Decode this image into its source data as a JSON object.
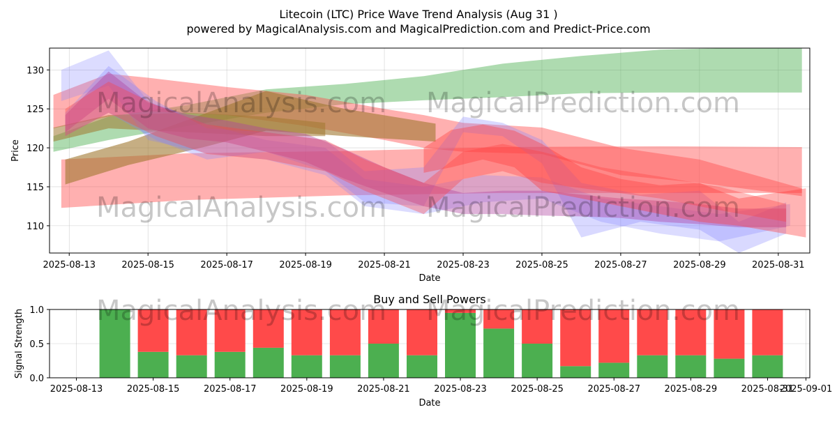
{
  "chart_data": [
    {
      "type": "area",
      "title": "Litecoin (LTC) Price Wave Trend Analysis (Aug 31 )",
      "subtitle": "powered by MagicalAnalysis.com and MagicalPrediction.com and Predict-Price.com",
      "xlabel": "Date",
      "ylabel": "Price",
      "xlim": [
        12.5,
        31.8
      ],
      "ylim": [
        106.5,
        132.8
      ],
      "grid": true,
      "x_ticks": [
        {
          "x": 13,
          "label": "2025-08-13"
        },
        {
          "x": 15,
          "label": "2025-08-15"
        },
        {
          "x": 17,
          "label": "2025-08-17"
        },
        {
          "x": 19,
          "label": "2025-08-19"
        },
        {
          "x": 21,
          "label": "2025-08-21"
        },
        {
          "x": 23,
          "label": "2025-08-23"
        },
        {
          "x": 25,
          "label": "2025-08-25"
        },
        {
          "x": 27,
          "label": "2025-08-27"
        },
        {
          "x": 29,
          "label": "2025-08-29"
        },
        {
          "x": 31,
          "label": "2025-08-31"
        }
      ],
      "y_ticks": [
        {
          "y": 110,
          "label": "110"
        },
        {
          "y": 115,
          "label": "115"
        },
        {
          "y": 120,
          "label": "120"
        },
        {
          "y": 125,
          "label": "125"
        },
        {
          "y": 130,
          "label": "130"
        }
      ],
      "watermarks": [
        "MagicalAnalysis.com",
        "MagicalPrediction.com",
        "MagicalAnalysis.com",
        "MagicalPrediction.com"
      ],
      "bands": [
        {
          "name": "green-uptrend",
          "color": "#4caf50",
          "opacity": 0.45,
          "x": [
            12.6,
            14,
            16,
            18,
            20,
            22,
            24,
            26,
            28,
            31.6
          ],
          "lower": [
            119.5,
            121,
            122.8,
            124.5,
            125.6,
            126.1,
            126.5,
            127,
            127.1,
            127.1
          ],
          "upper": [
            121.5,
            124,
            125.5,
            127.5,
            128.2,
            129.2,
            130.8,
            131.8,
            132.6,
            133
          ]
        },
        {
          "name": "red-flat-wide",
          "color": "#ff5050",
          "opacity": 0.45,
          "x": [
            12.8,
            16,
            20,
            24,
            28,
            31.6
          ],
          "lower": [
            112.3,
            113.3,
            113.9,
            114.2,
            114.2,
            114.2
          ],
          "upper": [
            118.5,
            119.3,
            119.6,
            120.1,
            120.2,
            120.1
          ]
        },
        {
          "name": "red-upper-decline",
          "color": "#ff5050",
          "opacity": 0.45,
          "x": [
            12.6,
            14,
            15,
            17,
            19,
            21,
            22,
            23,
            25,
            27,
            29,
            31.6
          ],
          "lower": [
            122.5,
            124,
            124.7,
            124.2,
            122.8,
            121,
            120,
            119.5,
            119.2,
            116.5,
            115.5,
            113.8
          ],
          "upper": [
            126.8,
            129.5,
            129,
            127.8,
            126.8,
            125,
            124.2,
            123.2,
            122.6,
            120,
            118.5,
            114.8
          ]
        },
        {
          "name": "olive-mixed",
          "color": "#a07830",
          "opacity": 0.6,
          "x": [
            12.9,
            14.5,
            16.5,
            18,
            20,
            22.3
          ],
          "lower": [
            115.3,
            117.8,
            120.2,
            122.2,
            121.5,
            120.8
          ],
          "upper": [
            118.5,
            120.8,
            124.5,
            127.3,
            125,
            123.1
          ]
        },
        {
          "name": "olive-upper",
          "color": "#a07830",
          "opacity": 0.55,
          "x": [
            12.6,
            14,
            16,
            18,
            19.5
          ],
          "lower": [
            120.8,
            122.5,
            122,
            121.5,
            121.5
          ],
          "upper": [
            122.6,
            124.2,
            124.5,
            124,
            123.2
          ]
        },
        {
          "name": "blue-fan-1",
          "color": "#8080ff",
          "opacity": 0.28,
          "x": [
            12.8,
            14,
            15,
            16.5,
            18,
            19.5,
            20.5,
            22,
            23.5,
            25,
            26.5,
            28,
            29.5,
            31.3
          ],
          "lower": [
            126,
            128,
            121,
            119.3,
            118.5,
            116.5,
            112.5,
            111.5,
            113,
            113.5,
            110.5,
            109,
            108,
            110
          ],
          "upper": [
            130,
            132.5,
            126,
            123,
            121,
            120,
            116,
            115,
            116.5,
            116.2,
            113.5,
            112.5,
            111.5,
            112.8
          ]
        },
        {
          "name": "blue-fan-2",
          "color": "#8080ff",
          "opacity": 0.3,
          "x": [
            12.9,
            14,
            15.2,
            16.5,
            18,
            19.5,
            20.5,
            22,
            23,
            24,
            25,
            26,
            27.5,
            29,
            30,
            31.2
          ],
          "lower": [
            121.5,
            124.5,
            121,
            118.5,
            119.5,
            117,
            113,
            112.5,
            122,
            121.5,
            118,
            108.5,
            110.5,
            109.5,
            106.5,
            109
          ],
          "upper": [
            124.5,
            130.5,
            126,
            122.5,
            122,
            121,
            117,
            117.5,
            124,
            123.2,
            121,
            115.5,
            114,
            114.5,
            110.5,
            113
          ]
        },
        {
          "name": "magenta-wave",
          "color": "#b040a0",
          "opacity": 0.4,
          "x": [
            12.9,
            14,
            15,
            16,
            17,
            18,
            19,
            20,
            21,
            22,
            23,
            24,
            25,
            26,
            27,
            28,
            29,
            30,
            31.2
          ],
          "lower": [
            122,
            126.3,
            122.5,
            121.2,
            120.7,
            119.5,
            118.2,
            116,
            114.2,
            112.5,
            111.5,
            111.5,
            111.3,
            111.2,
            111,
            110.5,
            110.2,
            109.8,
            109.8
          ],
          "upper": [
            124.2,
            129.8,
            125.8,
            124.3,
            123.5,
            122.5,
            121.8,
            119.8,
            117.5,
            115.5,
            114.2,
            114.5,
            114.5,
            114,
            113.5,
            113.2,
            112.8,
            112.2,
            112.2
          ]
        },
        {
          "name": "red-right-wave",
          "color": "#ff3b3b",
          "opacity": 0.38,
          "x": [
            22,
            22.7,
            23.5,
            24.3,
            25,
            26,
            27,
            28,
            29,
            30,
            31.7
          ],
          "lower": [
            116.8,
            117.5,
            118.5,
            117.5,
            114.5,
            113.5,
            112.5,
            111.5,
            110.5,
            110,
            108.5
          ],
          "upper": [
            120,
            122.3,
            123,
            122.2,
            120.5,
            117.5,
            116,
            115.2,
            115.5,
            113.5,
            114.8
          ]
        },
        {
          "name": "red-mid-wave",
          "color": "#ff4040",
          "opacity": 0.35,
          "x": [
            12.9,
            14,
            15.2,
            16.5,
            18,
            19.5,
            20.5,
            22,
            23,
            24,
            25,
            26.5,
            28,
            29.5,
            31.2
          ],
          "lower": [
            121.5,
            124.5,
            121.5,
            119.2,
            118.5,
            117,
            114.5,
            111.5,
            116,
            117,
            115.5,
            114.5,
            113.5,
            112,
            110.5
          ],
          "upper": [
            125,
            128.5,
            125.5,
            123,
            122,
            121,
            118.5,
            115.5,
            119.5,
            120.5,
            119.5,
            117.5,
            116.3,
            115,
            112.8
          ]
        }
      ]
    },
    {
      "type": "bar",
      "title": "Buy and Sell Powers",
      "xlabel": "Date",
      "ylabel": "Signal Strength",
      "xlim": [
        12.3,
        32.1
      ],
      "ylim": [
        0,
        1
      ],
      "grid": true,
      "x_ticks": [
        {
          "x": 13,
          "label": "2025-08-13"
        },
        {
          "x": 15,
          "label": "2025-08-15"
        },
        {
          "x": 17,
          "label": "2025-08-17"
        },
        {
          "x": 19,
          "label": "2025-08-19"
        },
        {
          "x": 21,
          "label": "2025-08-21"
        },
        {
          "x": 23,
          "label": "2025-08-23"
        },
        {
          "x": 25,
          "label": "2025-08-25"
        },
        {
          "x": 27,
          "label": "2025-08-27"
        },
        {
          "x": 29,
          "label": "2025-08-29"
        },
        {
          "x": 31,
          "label": "2025-08-31"
        },
        {
          "x": 32,
          "label": "2025-09-01"
        }
      ],
      "y_ticks": [
        {
          "y": 0,
          "label": "0.0"
        },
        {
          "y": 0.5,
          "label": "0.5"
        },
        {
          "y": 1,
          "label": "1.0"
        }
      ],
      "watermarks": [
        "MagicalAnalysis.com",
        "MagicalPrediction.com"
      ],
      "buy_color": "#4caf50",
      "sell_color": "#ff4a4a",
      "categories": [
        "2025-08-14",
        "2025-08-15",
        "2025-08-16",
        "2025-08-17",
        "2025-08-18",
        "2025-08-19",
        "2025-08-20",
        "2025-08-21",
        "2025-08-22",
        "2025-08-23",
        "2025-08-24",
        "2025-08-25",
        "2025-08-26",
        "2025-08-27",
        "2025-08-28",
        "2025-08-29",
        "2025-08-30",
        "2025-08-31"
      ],
      "x": [
        14,
        15,
        16,
        17,
        18,
        19,
        20,
        21,
        22,
        23,
        24,
        25,
        26,
        27,
        28,
        29,
        30,
        31
      ],
      "series": [
        {
          "name": "Buy",
          "values": [
            1.0,
            0.38,
            0.33,
            0.38,
            0.44,
            0.33,
            0.33,
            0.5,
            0.33,
            0.95,
            0.72,
            0.5,
            0.17,
            0.22,
            0.33,
            0.33,
            0.28,
            0.33
          ]
        },
        {
          "name": "Sell",
          "values": [
            0.0,
            0.62,
            0.67,
            0.62,
            0.56,
            0.67,
            0.67,
            0.5,
            0.67,
            0.05,
            0.28,
            0.5,
            0.83,
            0.78,
            0.67,
            0.67,
            0.72,
            0.67
          ]
        }
      ]
    }
  ]
}
